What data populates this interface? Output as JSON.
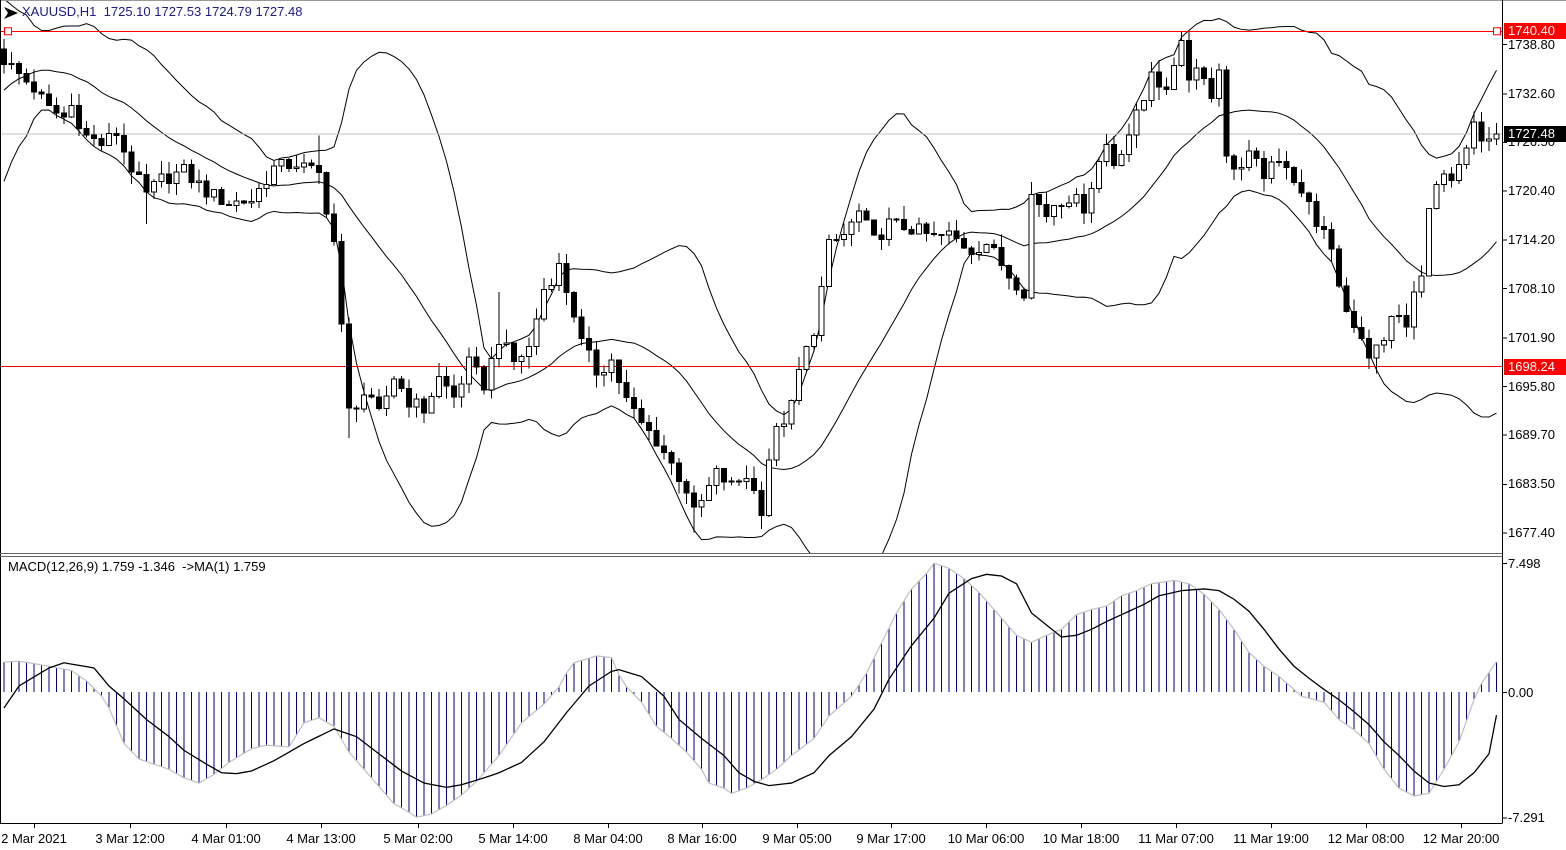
{
  "window_title": "XAUUSD,H1",
  "title": {
    "text": "XAUUSD,H1  1725.10 1727.53 1724.79 1727.48",
    "symbol": "XAUUSD",
    "period": "H1",
    "open": "1725.10",
    "high": "1727.53",
    "low": "1724.79",
    "close": "1727.48",
    "color": "#1b1b8a"
  },
  "indicator": {
    "label": "MACD(12,26,9) 1.759 -1.346  ->MA(1) 1.759"
  },
  "price_axis": {
    "tick_labels": [
      "1738.80",
      "1732.60",
      "1726.50",
      "1720.40",
      "1714.20",
      "1708.10",
      "1701.90",
      "1695.80",
      "1689.70",
      "1683.50",
      "1677.40"
    ],
    "tick_values": [
      1738.8,
      1732.6,
      1726.5,
      1720.4,
      1714.2,
      1708.1,
      1701.9,
      1695.8,
      1689.7,
      1683.5,
      1677.4
    ],
    "current": {
      "value": "1727.48",
      "number": 1727.48,
      "bg": "#000000",
      "fg": "#ffffff"
    },
    "levels": [
      {
        "value": "1740.40",
        "number": 1740.4,
        "bg": "#ff0000",
        "fg": "#ffffff"
      },
      {
        "value": "1698.24",
        "number": 1698.24,
        "bg": "#ff0000",
        "fg": "#ffffff"
      }
    ]
  },
  "macd_axis": {
    "tick_labels": [
      "7.498",
      "0.00",
      "-7.291"
    ],
    "tick_values": [
      7.498,
      0.0,
      -7.291
    ]
  },
  "time_axis": {
    "labels": [
      "2 Mar 2021",
      "3 Mar 12:00",
      "4 Mar 01:00",
      "4 Mar 13:00",
      "5 Mar 02:00",
      "5 Mar 14:00",
      "8 Mar 04:00",
      "8 Mar 16:00",
      "9 Mar 05:00",
      "9 Mar 17:00",
      "10 Mar 06:00",
      "10 Mar 18:00",
      "11 Mar 07:00",
      "11 Mar 19:00",
      "12 Mar 08:00",
      "12 Mar 20:00"
    ]
  },
  "colors": {
    "bull_fill": "#ffffff",
    "bear_fill": "#000000",
    "candle_outline": "#000000",
    "bollinger_line": "#000000",
    "hline_red": "#ff0000",
    "current_price_line": "#c0c0c0",
    "macd_histogram": "#000080",
    "macd_envelope": "#c0c0c0",
    "macd_signal": "#000000",
    "axis_text": "#000000",
    "background": "#ffffff"
  },
  "chart_data": [
    {
      "type": "candlestick",
      "symbol": "XAUUSD",
      "timeframe": "H1",
      "bars": 200,
      "ylim": [
        1675.0,
        1742.0
      ],
      "price_ticks": [
        1738.8,
        1732.6,
        1726.5,
        1720.4,
        1714.2,
        1708.1,
        1701.9,
        1695.8,
        1689.7,
        1683.5,
        1677.4
      ],
      "horizontal_lines": [
        1740.4,
        1698.24
      ],
      "current_price": 1727.48,
      "overlay": "Bollinger Bands (period 20, deviation 2) - three black lines",
      "close_keyframes": [
        [
          0,
          1736.8
        ],
        [
          2,
          1735.0
        ],
        [
          4,
          1733.2
        ],
        [
          6,
          1730.6
        ],
        [
          8,
          1729.6
        ],
        [
          9,
          1731.0
        ],
        [
          11,
          1727.2
        ],
        [
          13,
          1726.2
        ],
        [
          15,
          1727.6
        ],
        [
          17,
          1723.2
        ],
        [
          19,
          1719.8
        ],
        [
          21,
          1721.8
        ],
        [
          24,
          1722.8
        ],
        [
          27,
          1720.2
        ],
        [
          30,
          1718.8
        ],
        [
          33,
          1719.2
        ],
        [
          36,
          1723.2
        ],
        [
          39,
          1723.8
        ],
        [
          42,
          1722.4
        ],
        [
          44,
          1714.0
        ],
        [
          45,
          1703.0
        ],
        [
          46,
          1692.6
        ],
        [
          48,
          1694.8
        ],
        [
          50,
          1692.2
        ],
        [
          52,
          1697.0
        ],
        [
          54,
          1694.0
        ],
        [
          56,
          1692.8
        ],
        [
          58,
          1696.8
        ],
        [
          60,
          1694.4
        ],
        [
          62,
          1698.6
        ],
        [
          64,
          1696.0
        ],
        [
          66,
          1701.8
        ],
        [
          68,
          1698.8
        ],
        [
          70,
          1700.6
        ],
        [
          72,
          1708.0
        ],
        [
          74,
          1710.8
        ],
        [
          76,
          1705.0
        ],
        [
          77,
          1701.2
        ],
        [
          79,
          1697.6
        ],
        [
          81,
          1699.0
        ],
        [
          83,
          1694.0
        ],
        [
          85,
          1691.0
        ],
        [
          87,
          1689.0
        ],
        [
          89,
          1686.0
        ],
        [
          91,
          1682.8
        ],
        [
          92,
          1679.8
        ],
        [
          93,
          1681.2
        ],
        [
          95,
          1684.8
        ],
        [
          97,
          1683.2
        ],
        [
          99,
          1684.6
        ],
        [
          101,
          1680.4
        ],
        [
          102,
          1686.8
        ],
        [
          103,
          1690.0
        ],
        [
          105,
          1693.2
        ],
        [
          106,
          1697.6
        ],
        [
          108,
          1703.0
        ],
        [
          109,
          1708.0
        ],
        [
          110,
          1713.4
        ],
        [
          112,
          1714.8
        ],
        [
          114,
          1717.6
        ],
        [
          116,
          1714.0
        ],
        [
          118,
          1716.2
        ],
        [
          121,
          1715.6
        ],
        [
          124,
          1714.4
        ],
        [
          126,
          1714.8
        ],
        [
          129,
          1712.9
        ],
        [
          131,
          1713.8
        ],
        [
          134,
          1709.8
        ],
        [
          136,
          1707.8
        ],
        [
          137,
          1719.8
        ],
        [
          139,
          1717.4
        ],
        [
          140,
          1718.8
        ],
        [
          142,
          1719.6
        ],
        [
          144,
          1718.4
        ],
        [
          146,
          1724.0
        ],
        [
          147,
          1726.2
        ],
        [
          148,
          1723.8
        ],
        [
          150,
          1727.6
        ],
        [
          152,
          1731.8
        ],
        [
          153,
          1735.8
        ],
        [
          155,
          1732.2
        ],
        [
          156,
          1736.4
        ],
        [
          157,
          1739.8
        ],
        [
          158,
          1734.2
        ],
        [
          159,
          1736.6
        ],
        [
          161,
          1732.2
        ],
        [
          162,
          1736.2
        ],
        [
          163,
          1724.2
        ],
        [
          165,
          1723.2
        ],
        [
          166,
          1724.6
        ],
        [
          168,
          1722.6
        ],
        [
          170,
          1723.6
        ],
        [
          171,
          1724.0
        ],
        [
          172,
          1722.0
        ],
        [
          174,
          1718.4
        ],
        [
          176,
          1714.8
        ],
        [
          177,
          1712.2
        ],
        [
          179,
          1705.2
        ],
        [
          181,
          1702.2
        ],
        [
          182,
          1699.8
        ],
        [
          184,
          1701.2
        ],
        [
          185,
          1705.0
        ],
        [
          187,
          1703.2
        ],
        [
          188,
          1707.4
        ],
        [
          189,
          1709.2
        ],
        [
          190,
          1719.0
        ],
        [
          192,
          1722.2
        ],
        [
          193,
          1720.8
        ],
        [
          195,
          1725.2
        ],
        [
          196,
          1728.6
        ],
        [
          197,
          1726.0
        ],
        [
          199,
          1727.48
        ]
      ],
      "wick_overrides": {
        "0": {
          "h": 1739.4
        },
        "19": {
          "l": 1716.2
        },
        "42": {
          "h": 1727.3
        },
        "46": {
          "l": 1689.3
        },
        "66": {
          "h": 1707.6
        },
        "92": {
          "l": 1677.4
        },
        "157": {
          "h": 1740.3
        },
        "183": {
          "l": 1697.4
        }
      },
      "bollinger_prehistory": [
        1722,
        1720,
        1723,
        1726,
        1724,
        1728,
        1731,
        1734,
        1732,
        1736,
        1738,
        1735,
        1739,
        1741,
        1738,
        1735,
        1733,
        1736,
        1738,
        1737
      ]
    },
    {
      "type": "macd",
      "params": [
        12,
        26,
        9
      ],
      "last_macd": 1.759,
      "last_signal": -1.346,
      "ylim": [
        -7.291,
        7.498
      ],
      "macd_keyframes": [
        [
          0,
          1.74
        ],
        [
          2,
          1.8
        ],
        [
          6,
          1.5
        ],
        [
          9,
          1.25
        ],
        [
          11,
          0.64
        ],
        [
          13,
          -0.23
        ],
        [
          14,
          -0.93
        ],
        [
          16,
          -3.0
        ],
        [
          18,
          -3.9
        ],
        [
          20,
          -4.2
        ],
        [
          22,
          -4.5
        ],
        [
          24,
          -5.0
        ],
        [
          26,
          -5.3
        ],
        [
          28,
          -4.8
        ],
        [
          30,
          -4.1
        ],
        [
          33,
          -3.3
        ],
        [
          35,
          -3.1
        ],
        [
          38,
          -3.2
        ],
        [
          40,
          -1.8
        ],
        [
          42,
          -1.5
        ],
        [
          44,
          -2.0
        ],
        [
          46,
          -3.5
        ],
        [
          48,
          -4.5
        ],
        [
          50,
          -5.5
        ],
        [
          52,
          -6.5
        ],
        [
          54,
          -7.0
        ],
        [
          55,
          -7.29
        ],
        [
          57,
          -7.1
        ],
        [
          59,
          -6.6
        ],
        [
          61,
          -6.0
        ],
        [
          63,
          -5.2
        ],
        [
          66,
          -3.7
        ],
        [
          69,
          -1.8
        ],
        [
          72,
          -0.7
        ],
        [
          74,
          0.3
        ],
        [
          75,
          1.1
        ],
        [
          76,
          1.7
        ],
        [
          79,
          2.1
        ],
        [
          81,
          2.0
        ],
        [
          82,
          1.0
        ],
        [
          83,
          0.3
        ],
        [
          85,
          -0.6
        ],
        [
          87,
          -2.0
        ],
        [
          89,
          -2.7
        ],
        [
          91,
          -3.5
        ],
        [
          93,
          -4.5
        ],
        [
          94,
          -5.3
        ],
        [
          96,
          -5.6
        ],
        [
          97,
          -5.9
        ],
        [
          99,
          -5.6
        ],
        [
          101,
          -5.1
        ],
        [
          103,
          -4.5
        ],
        [
          105,
          -3.7
        ],
        [
          108,
          -2.7
        ],
        [
          110,
          -1.4
        ],
        [
          113,
          -0.25
        ],
        [
          115,
          1.1
        ],
        [
          117,
          2.85
        ],
        [
          119,
          4.6
        ],
        [
          121,
          6.0
        ],
        [
          123,
          6.9
        ],
        [
          124,
          7.498
        ],
        [
          126,
          7.2
        ],
        [
          128,
          6.6
        ],
        [
          130,
          5.8
        ],
        [
          133,
          4.3
        ],
        [
          135,
          3.3
        ],
        [
          137,
          2.9
        ],
        [
          139,
          3.3
        ],
        [
          141,
          3.65
        ],
        [
          143,
          4.5
        ],
        [
          145,
          4.8
        ],
        [
          147,
          5.0
        ],
        [
          149,
          5.6
        ],
        [
          151,
          5.9
        ],
        [
          153,
          6.3
        ],
        [
          156,
          6.5
        ],
        [
          158,
          6.3
        ],
        [
          160,
          5.7
        ],
        [
          162,
          4.8
        ],
        [
          164,
          3.65
        ],
        [
          166,
          2.3
        ],
        [
          168,
          1.5
        ],
        [
          170,
          0.9
        ],
        [
          172,
          0.15
        ],
        [
          173,
          -0.25
        ],
        [
          174,
          -0.35
        ],
        [
          176,
          -0.6
        ],
        [
          178,
          -1.6
        ],
        [
          180,
          -2.2
        ],
        [
          182,
          -3.0
        ],
        [
          184,
          -4.5
        ],
        [
          186,
          -5.6
        ],
        [
          188,
          -6.05
        ],
        [
          190,
          -5.9
        ],
        [
          192,
          -4.5
        ],
        [
          194,
          -2.9
        ],
        [
          196,
          -0.45
        ],
        [
          197,
          0.5
        ],
        [
          199,
          1.759
        ]
      ],
      "signal_keyframes": [
        [
          0,
          -0.93
        ],
        [
          2,
          0.35
        ],
        [
          6,
          1.4
        ],
        [
          8,
          1.7
        ],
        [
          12,
          1.4
        ],
        [
          14,
          0.35
        ],
        [
          16,
          -0.4
        ],
        [
          19,
          -1.6
        ],
        [
          22,
          -2.6
        ],
        [
          24,
          -3.4
        ],
        [
          27,
          -4.2
        ],
        [
          29,
          -4.7
        ],
        [
          31,
          -4.75
        ],
        [
          33,
          -4.6
        ],
        [
          36,
          -4.0
        ],
        [
          40,
          -3.0
        ],
        [
          44,
          -2.15
        ],
        [
          47,
          -2.6
        ],
        [
          50,
          -3.6
        ],
        [
          53,
          -4.6
        ],
        [
          56,
          -5.3
        ],
        [
          59,
          -5.55
        ],
        [
          61,
          -5.4
        ],
        [
          64,
          -5.0
        ],
        [
          66,
          -4.7
        ],
        [
          69,
          -4.1
        ],
        [
          72,
          -2.9
        ],
        [
          75,
          -1.2
        ],
        [
          78,
          0.35
        ],
        [
          81,
          1.2
        ],
        [
          82,
          1.3
        ],
        [
          85,
          0.9
        ],
        [
          88,
          -0.25
        ],
        [
          90,
          -1.6
        ],
        [
          93,
          -2.7
        ],
        [
          96,
          -3.7
        ],
        [
          98,
          -4.7
        ],
        [
          100,
          -5.2
        ],
        [
          102,
          -5.45
        ],
        [
          105,
          -5.3
        ],
        [
          108,
          -4.7
        ],
        [
          110,
          -3.7
        ],
        [
          113,
          -2.6
        ],
        [
          116,
          -1.0
        ],
        [
          118,
          0.75
        ],
        [
          121,
          2.7
        ],
        [
          124,
          4.3
        ],
        [
          126,
          5.75
        ],
        [
          129,
          6.6
        ],
        [
          131,
          6.85
        ],
        [
          133,
          6.75
        ],
        [
          135,
          6.3
        ],
        [
          137,
          4.6
        ],
        [
          141,
          3.2
        ],
        [
          143,
          3.3
        ],
        [
          145,
          3.65
        ],
        [
          147,
          4.1
        ],
        [
          149,
          4.5
        ],
        [
          152,
          5.1
        ],
        [
          154,
          5.6
        ],
        [
          157,
          5.9
        ],
        [
          160,
          6.0
        ],
        [
          162,
          5.9
        ],
        [
          164,
          5.4
        ],
        [
          166,
          4.7
        ],
        [
          168,
          3.65
        ],
        [
          170,
          2.5
        ],
        [
          172,
          1.5
        ],
        [
          174,
          0.8
        ],
        [
          176,
          0.15
        ],
        [
          178,
          -0.45
        ],
        [
          180,
          -1.15
        ],
        [
          182,
          -1.9
        ],
        [
          184,
          -2.9
        ],
        [
          186,
          -3.7
        ],
        [
          188,
          -4.6
        ],
        [
          190,
          -5.3
        ],
        [
          192,
          -5.5
        ],
        [
          194,
          -5.4
        ],
        [
          196,
          -4.7
        ],
        [
          198,
          -3.6
        ],
        [
          199,
          -1.346
        ]
      ]
    }
  ]
}
